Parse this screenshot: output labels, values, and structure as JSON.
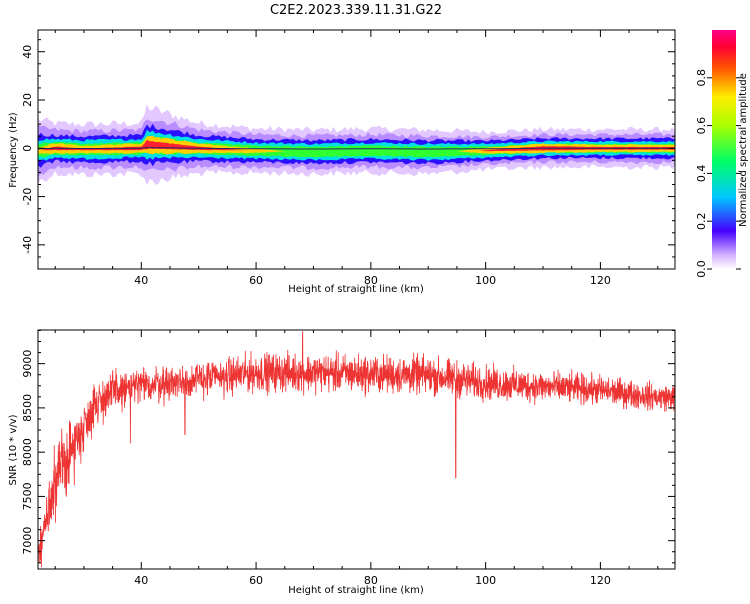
{
  "figure_title": "C2E2.2023.339.11.31.G22",
  "chart_data": [
    {
      "type": "heatmap",
      "title": "",
      "xlabel": "Height of straight line (km)",
      "ylabel": "Frequency (Hz)",
      "xlim": [
        22,
        133
      ],
      "ylim": [
        -50,
        49
      ],
      "xticks": [
        40,
        60,
        80,
        100,
        120
      ],
      "yticks": [
        -40,
        -20,
        0,
        20,
        40
      ],
      "colorbar": {
        "label": "Normalized spectral amplitude",
        "range": [
          0,
          1
        ],
        "ticks": [
          0.0,
          0.2,
          0.4,
          0.6,
          0.8
        ]
      },
      "ridge": {
        "x": [
          22,
          25,
          30,
          40,
          41,
          50,
          60,
          70,
          80,
          90,
          100,
          110,
          120,
          133
        ],
        "center_hz": [
          -1,
          0,
          -0.5,
          0,
          1.5,
          0,
          -1,
          -1.5,
          -1,
          -1.5,
          -1,
          0,
          0,
          0
        ],
        "halfwidth_hz": [
          5,
          4,
          4,
          4,
          6,
          4,
          3.5,
          3.5,
          3.5,
          3.5,
          3,
          3,
          3,
          3
        ],
        "peak_amplitude": [
          0.8,
          0.9,
          0.85,
          0.9,
          0.95,
          0.9,
          0.8,
          0.6,
          0.6,
          0.55,
          0.85,
          0.95,
          0.9,
          0.9
        ]
      }
    },
    {
      "type": "line",
      "title": "",
      "xlabel": "Height of straight line (km)",
      "ylabel": "SNR (10 * v/v)",
      "xlim": [
        22,
        133
      ],
      "ylim": [
        6680,
        9380
      ],
      "xticks": [
        40,
        60,
        80,
        100,
        120
      ],
      "yticks": [
        7000,
        7500,
        8000,
        8500,
        9000
      ],
      "series": [
        {
          "color": "#ee3333",
          "envelope": {
            "x": [
              22,
              24,
              26,
              28,
              30,
              32,
              35,
              40,
              50,
              60,
              70,
              80,
              90,
              100,
              110,
              120,
              125,
              130,
              133
            ],
            "mean": [
              6850,
              7400,
              7800,
              8050,
              8300,
              8550,
              8680,
              8750,
              8820,
              8900,
              8900,
              8880,
              8870,
              8780,
              8740,
              8700,
              8660,
              8620,
              8620
            ],
            "amp": [
              150,
              400,
              450,
              400,
              300,
              280,
              260,
              230,
              220,
              230,
              230,
              230,
              230,
              210,
              190,
              180,
              170,
              160,
              160
            ]
          },
          "spikes": [
            {
              "x": 94.8,
              "y": 7710
            },
            {
              "x": 38.1,
              "y": 8100
            },
            {
              "x": 47.6,
              "y": 8200
            },
            {
              "x": 68.1,
              "y": 9360
            },
            {
              "x": 22.6,
              "y": 6700
            }
          ]
        }
      ]
    }
  ]
}
